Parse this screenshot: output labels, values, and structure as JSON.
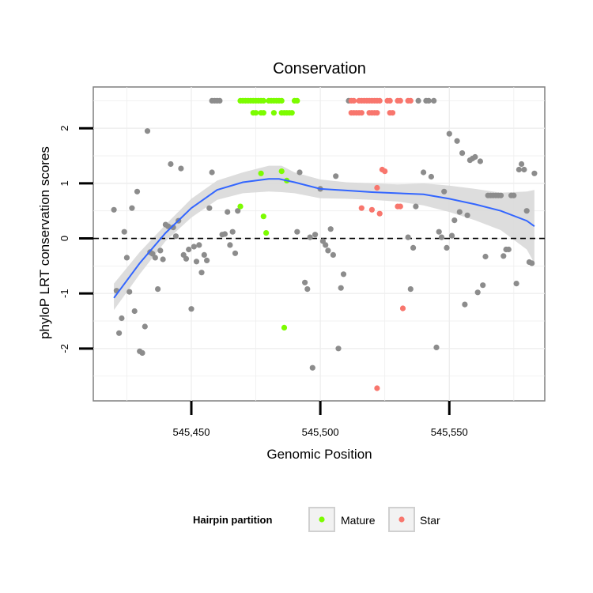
{
  "chart_data": {
    "type": "scatter",
    "title": "Conservation",
    "xlabel": "Genomic Position",
    "ylabel": "phyloP LRT conservation scores",
    "xlim": [
      545412,
      545587
    ],
    "ylim": [
      -2.95,
      2.75
    ],
    "x_ticks": [
      545450,
      545500,
      545550
    ],
    "x_tick_labels": [
      "545,450",
      "545,500",
      "545,550"
    ],
    "y_ticks": [
      -2,
      -1,
      0,
      1,
      2
    ],
    "y_tick_labels": [
      "-2",
      "-1",
      "0",
      "1",
      "2"
    ],
    "grid": true,
    "reference_line": {
      "y": 0,
      "style": "dashed"
    },
    "legend": {
      "title": "Hairpin partition",
      "position": "bottom",
      "entries": [
        {
          "label": "Mature",
          "color": "#7cfc00"
        },
        {
          "label": "Star",
          "color": "#f8766d"
        }
      ]
    },
    "colors": {
      "other": "#8c8c8c",
      "smooth": "#3366ff",
      "ribbon": "#d9d9d9"
    },
    "series": [
      {
        "group": "other",
        "points": [
          [
            545420,
            0.52
          ],
          [
            545421,
            -0.95
          ],
          [
            545422,
            -1.72
          ],
          [
            545423,
            -1.45
          ],
          [
            545424,
            0.12
          ],
          [
            545425,
            -0.35
          ],
          [
            545426,
            -0.97
          ],
          [
            545427,
            0.55
          ],
          [
            545428,
            -1.32
          ],
          [
            545429,
            0.85
          ],
          [
            545430,
            -2.05
          ],
          [
            545431,
            -2.08
          ],
          [
            545432,
            -1.6
          ],
          [
            545433,
            1.95
          ],
          [
            545434,
            -0.25
          ],
          [
            545435,
            -0.28
          ],
          [
            545436,
            -0.35
          ],
          [
            545437,
            -0.92
          ],
          [
            545438,
            -0.22
          ],
          [
            545439,
            -0.38
          ],
          [
            545440,
            0.25
          ],
          [
            545441,
            0.22
          ],
          [
            545442,
            1.35
          ],
          [
            545443,
            0.2
          ],
          [
            545444,
            0.04
          ],
          [
            545445,
            0.32
          ],
          [
            545446,
            1.27
          ],
          [
            545447,
            -0.3
          ],
          [
            545448,
            -0.37
          ],
          [
            545449,
            -0.2
          ],
          [
            545450,
            -1.28
          ],
          [
            545451,
            -0.15
          ],
          [
            545452,
            -0.42
          ],
          [
            545453,
            -0.12
          ],
          [
            545454,
            -0.62
          ],
          [
            545455,
            -0.3
          ],
          [
            545456,
            -0.4
          ],
          [
            545457,
            0.55
          ],
          [
            545458,
            1.2
          ],
          [
            545458,
            2.5
          ],
          [
            545459,
            2.5
          ],
          [
            545460,
            2.5
          ],
          [
            545461,
            2.5
          ],
          [
            545462,
            0.07
          ],
          [
            545463,
            0.08
          ],
          [
            545464,
            0.48
          ],
          [
            545465,
            -0.12
          ],
          [
            545466,
            0.12
          ],
          [
            545467,
            -0.27
          ],
          [
            545468,
            0.5
          ],
          [
            545497,
            -2.35
          ],
          [
            545491,
            0.12
          ],
          [
            545492,
            1.2
          ],
          [
            545494,
            -0.8
          ],
          [
            545495,
            -0.92
          ],
          [
            545496,
            0.02
          ],
          [
            545498,
            0.07
          ],
          [
            545500,
            0.9
          ],
          [
            545501,
            -0.05
          ],
          [
            545502,
            -0.12
          ],
          [
            545503,
            -0.22
          ],
          [
            545504,
            0.17
          ],
          [
            545505,
            -0.3
          ],
          [
            545506,
            1.13
          ],
          [
            545507,
            -2.0
          ],
          [
            545508,
            -0.9
          ],
          [
            545509,
            -0.65
          ],
          [
            545511,
            2.5
          ],
          [
            545534,
            0.02
          ],
          [
            545535,
            -0.92
          ],
          [
            545536,
            -0.17
          ],
          [
            545537,
            0.58
          ],
          [
            545538,
            2.5
          ],
          [
            545540,
            1.2
          ],
          [
            545541,
            2.5
          ],
          [
            545542,
            2.5
          ],
          [
            545543,
            1.12
          ],
          [
            545544,
            2.5
          ],
          [
            545545,
            -1.98
          ],
          [
            545546,
            0.12
          ],
          [
            545547,
            0.02
          ],
          [
            545548,
            0.85
          ],
          [
            545549,
            -0.17
          ],
          [
            545550,
            1.9
          ],
          [
            545551,
            0.05
          ],
          [
            545552,
            0.33
          ],
          [
            545553,
            1.77
          ],
          [
            545554,
            0.48
          ],
          [
            545555,
            1.55
          ],
          [
            545556,
            -1.2
          ],
          [
            545557,
            0.42
          ],
          [
            545558,
            1.42
          ],
          [
            545559,
            1.45
          ],
          [
            545560,
            1.48
          ],
          [
            545561,
            -0.98
          ],
          [
            545562,
            1.4
          ],
          [
            545563,
            -0.85
          ],
          [
            545564,
            -0.33
          ],
          [
            545565,
            0.78
          ],
          [
            545566,
            0.78
          ],
          [
            545567,
            0.78
          ],
          [
            545568,
            0.78
          ],
          [
            545569,
            0.78
          ],
          [
            545570,
            0.78
          ],
          [
            545571,
            -0.32
          ],
          [
            545572,
            -0.2
          ],
          [
            545573,
            -0.2
          ],
          [
            545574,
            0.78
          ],
          [
            545575,
            0.78
          ],
          [
            545576,
            -0.82
          ],
          [
            545577,
            1.25
          ],
          [
            545578,
            1.35
          ],
          [
            545579,
            1.25
          ],
          [
            545580,
            0.5
          ],
          [
            545581,
            -0.43
          ],
          [
            545582,
            -0.45
          ],
          [
            545583,
            1.18
          ]
        ]
      },
      {
        "name": "Mature",
        "group": "Mature",
        "points": [
          [
            545469,
            2.5
          ],
          [
            545470,
            2.5
          ],
          [
            545471,
            2.5
          ],
          [
            545472,
            2.5
          ],
          [
            545473,
            2.5
          ],
          [
            545474,
            2.5
          ],
          [
            545475,
            2.5
          ],
          [
            545476,
            2.5
          ],
          [
            545477,
            2.5
          ],
          [
            545478,
            2.5
          ],
          [
            545480,
            2.5
          ],
          [
            545481,
            2.5
          ],
          [
            545482,
            2.5
          ],
          [
            545483,
            2.5
          ],
          [
            545484,
            2.5
          ],
          [
            545485,
            2.5
          ],
          [
            545490,
            2.5
          ],
          [
            545491,
            2.5
          ],
          [
            545474,
            2.28
          ],
          [
            545475,
            2.28
          ],
          [
            545477,
            2.28
          ],
          [
            545478,
            2.28
          ],
          [
            545482,
            2.28
          ],
          [
            545485,
            2.28
          ],
          [
            545486,
            2.28
          ],
          [
            545487,
            2.28
          ],
          [
            545488,
            2.28
          ],
          [
            545489,
            2.28
          ],
          [
            545469,
            0.58
          ],
          [
            545477,
            1.18
          ],
          [
            545478,
            0.4
          ],
          [
            545479,
            0.1
          ],
          [
            545485,
            1.22
          ],
          [
            545486,
            -1.62
          ],
          [
            545487,
            1.05
          ]
        ]
      },
      {
        "name": "Star",
        "group": "Star",
        "points": [
          [
            545512,
            2.5
          ],
          [
            545513,
            2.5
          ],
          [
            545515,
            2.5
          ],
          [
            545516,
            2.5
          ],
          [
            545517,
            2.5
          ],
          [
            545518,
            2.5
          ],
          [
            545519,
            2.5
          ],
          [
            545520,
            2.5
          ],
          [
            545521,
            2.5
          ],
          [
            545522,
            2.5
          ],
          [
            545523,
            2.5
          ],
          [
            545526,
            2.5
          ],
          [
            545527,
            2.5
          ],
          [
            545530,
            2.5
          ],
          [
            545531,
            2.5
          ],
          [
            545534,
            2.5
          ],
          [
            545535,
            2.5
          ],
          [
            545512,
            2.28
          ],
          [
            545513,
            2.28
          ],
          [
            545514,
            2.28
          ],
          [
            545515,
            2.28
          ],
          [
            545516,
            2.28
          ],
          [
            545519,
            2.28
          ],
          [
            545520,
            2.28
          ],
          [
            545521,
            2.28
          ],
          [
            545522,
            2.28
          ],
          [
            545527,
            2.28
          ],
          [
            545528,
            2.28
          ],
          [
            545516,
            0.55
          ],
          [
            545520,
            0.52
          ],
          [
            545522,
            0.92
          ],
          [
            545523,
            0.45
          ],
          [
            545524,
            1.25
          ],
          [
            545525,
            1.22
          ],
          [
            545530,
            0.58
          ],
          [
            545531,
            0.58
          ],
          [
            545532,
            -1.27
          ],
          [
            545522,
            -2.72
          ]
        ]
      }
    ],
    "smooth": {
      "points": [
        [
          545420,
          -1.08
        ],
        [
          545430,
          -0.45
        ],
        [
          545440,
          0.1
        ],
        [
          545450,
          0.55
        ],
        [
          545460,
          0.88
        ],
        [
          545470,
          1.02
        ],
        [
          545480,
          1.08
        ],
        [
          545484,
          1.08
        ],
        [
          545490,
          1.02
        ],
        [
          545500,
          0.9
        ],
        [
          545510,
          0.87
        ],
        [
          545520,
          0.84
        ],
        [
          545530,
          0.82
        ],
        [
          545540,
          0.8
        ],
        [
          545550,
          0.72
        ],
        [
          545560,
          0.62
        ],
        [
          545570,
          0.5
        ],
        [
          545580,
          0.32
        ],
        [
          545583,
          0.22
        ]
      ],
      "band": [
        [
          545420,
          -0.82,
          -1.3
        ],
        [
          545430,
          -0.25,
          -0.65
        ],
        [
          545440,
          0.25,
          -0.05
        ],
        [
          545450,
          0.72,
          0.38
        ],
        [
          545460,
          1.05,
          0.7
        ],
        [
          545470,
          1.2,
          0.82
        ],
        [
          545480,
          1.32,
          0.85
        ],
        [
          545485,
          1.32,
          0.84
        ],
        [
          545490,
          1.2,
          0.82
        ],
        [
          545500,
          1.07,
          0.73
        ],
        [
          545510,
          1.02,
          0.72
        ],
        [
          545520,
          1.0,
          0.7
        ],
        [
          545530,
          0.98,
          0.67
        ],
        [
          545540,
          1.0,
          0.6
        ],
        [
          545550,
          0.96,
          0.48
        ],
        [
          545560,
          0.9,
          0.33
        ],
        [
          545570,
          0.83,
          0.15
        ],
        [
          545580,
          0.85,
          -0.2
        ],
        [
          545583,
          0.88,
          -0.45
        ]
      ]
    }
  }
}
